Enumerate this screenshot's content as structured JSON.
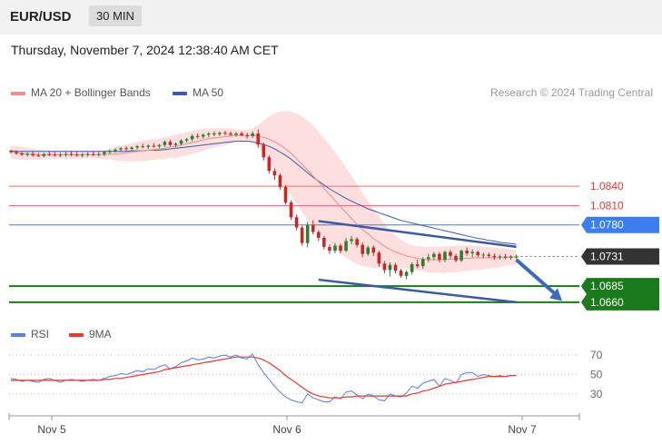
{
  "header": {
    "symbol": "EUR/USD",
    "timeframe": "30 MIN"
  },
  "datetime": "Thursday, November 7, 2024 12:38:40 AM CET",
  "legend": {
    "ma20_label": "MA 20 + Bollinger Bands",
    "ma50_label": "MA 50",
    "credit": "Research © 2024 Trading Central"
  },
  "colors": {
    "ma20": "#f28b8b",
    "ma50": "#3b5ba8",
    "band": "#fdd9d9",
    "up": "#2e7d32",
    "down": "#c62828",
    "rsi": "#5b7fdb",
    "rsi_ma": "#e53935",
    "support": "#1b7a1b",
    "resistance": "#e57373",
    "pivot": "#3c7df0",
    "last": "#333333"
  },
  "chart_data": [
    {
      "type": "candlestick",
      "title": "",
      "x_ticks": [
        "Nov 5",
        "Nov 6",
        "Nov 7"
      ],
      "ylim": [
        1.065,
        1.096
      ],
      "candles": [
        [
          1.0895,
          1.0897,
          1.0891,
          1.0893
        ],
        [
          1.0893,
          1.0896,
          1.0889,
          1.0891
        ],
        [
          1.0891,
          1.0894,
          1.0887,
          1.0889
        ],
        [
          1.0889,
          1.0893,
          1.0886,
          1.089
        ],
        [
          1.089,
          1.0894,
          1.0886,
          1.0888
        ],
        [
          1.0888,
          1.0892,
          1.0885,
          1.0887
        ],
        [
          1.0887,
          1.0892,
          1.0885,
          1.089
        ],
        [
          1.089,
          1.0894,
          1.0887,
          1.0889
        ],
        [
          1.0889,
          1.0893,
          1.0886,
          1.0888
        ],
        [
          1.0888,
          1.0892,
          1.0885,
          1.0889
        ],
        [
          1.0889,
          1.0893,
          1.0886,
          1.089
        ],
        [
          1.089,
          1.0894,
          1.0887,
          1.0889
        ],
        [
          1.0889,
          1.0893,
          1.0886,
          1.0888
        ],
        [
          1.0888,
          1.0892,
          1.0885,
          1.0889
        ],
        [
          1.0889,
          1.0893,
          1.0886,
          1.089
        ],
        [
          1.089,
          1.0894,
          1.0887,
          1.0889
        ],
        [
          1.0889,
          1.0893,
          1.0886,
          1.089
        ],
        [
          1.089,
          1.0895,
          1.0887,
          1.0893
        ],
        [
          1.0893,
          1.0897,
          1.089,
          1.0895
        ],
        [
          1.0895,
          1.0899,
          1.0892,
          1.0897
        ],
        [
          1.0897,
          1.0901,
          1.0894,
          1.0899
        ],
        [
          1.0899,
          1.0902,
          1.0895,
          1.0898
        ],
        [
          1.0898,
          1.0902,
          1.0895,
          1.09
        ],
        [
          1.09,
          1.0904,
          1.0897,
          1.0902
        ],
        [
          1.0902,
          1.0906,
          1.0899,
          1.0901
        ],
        [
          1.0901,
          1.0905,
          1.0898,
          1.0903
        ],
        [
          1.0903,
          1.0907,
          1.09,
          1.0902
        ],
        [
          1.0902,
          1.0906,
          1.0899,
          1.0904
        ],
        [
          1.0904,
          1.0911,
          1.0901,
          1.0909
        ],
        [
          1.0909,
          1.0912,
          1.0902,
          1.0904
        ],
        [
          1.0904,
          1.0908,
          1.0901,
          1.0906
        ],
        [
          1.0906,
          1.0913,
          1.0903,
          1.0911
        ],
        [
          1.0911,
          1.0915,
          1.0908,
          1.0913
        ],
        [
          1.0913,
          1.0921,
          1.091,
          1.0918
        ],
        [
          1.0918,
          1.0922,
          1.0914,
          1.0917
        ],
        [
          1.0917,
          1.0922,
          1.0914,
          1.092
        ],
        [
          1.092,
          1.0924,
          1.0916,
          1.0922
        ],
        [
          1.0922,
          1.0925,
          1.0918,
          1.0921
        ],
        [
          1.0921,
          1.0925,
          1.0918,
          1.0923
        ],
        [
          1.0923,
          1.0926,
          1.0919,
          1.0922
        ],
        [
          1.0922,
          1.0925,
          1.0918,
          1.092
        ],
        [
          1.092,
          1.0924,
          1.0917,
          1.0922
        ],
        [
          1.0922,
          1.0925,
          1.0918,
          1.0919
        ],
        [
          1.0919,
          1.0923,
          1.0914,
          1.0918
        ],
        [
          1.0918,
          1.0925,
          1.0915,
          1.0922
        ],
        [
          1.0922,
          1.0928,
          1.09,
          1.0905
        ],
        [
          1.0905,
          1.0908,
          1.088,
          1.0885
        ],
        [
          1.0885,
          1.0888,
          1.086,
          1.0864
        ],
        [
          1.0864,
          1.0868,
          1.085,
          1.0857
        ],
        [
          1.0857,
          1.086,
          1.0835,
          1.0839
        ],
        [
          1.0839,
          1.0842,
          1.0812,
          1.0815
        ],
        [
          1.0815,
          1.0818,
          1.0788,
          1.0792
        ],
        [
          1.0792,
          1.0796,
          1.0772,
          1.0776
        ],
        [
          1.0776,
          1.0779,
          1.0748,
          1.0752
        ],
        [
          1.0752,
          1.0785,
          1.0745,
          1.078
        ],
        [
          1.078,
          1.0787,
          1.0765,
          1.0769
        ],
        [
          1.0769,
          1.0772,
          1.0755,
          1.076
        ],
        [
          1.076,
          1.0763,
          1.0742,
          1.0746
        ],
        [
          1.0746,
          1.075,
          1.0735,
          1.074
        ],
        [
          1.074,
          1.0752,
          1.0736,
          1.0748
        ],
        [
          1.0748,
          1.0751,
          1.0736,
          1.074
        ],
        [
          1.074,
          1.076,
          1.0738,
          1.0755
        ],
        [
          1.0755,
          1.0763,
          1.075,
          1.0758
        ],
        [
          1.0758,
          1.0761,
          1.0745,
          1.0749
        ],
        [
          1.0749,
          1.0753,
          1.073,
          1.0735
        ],
        [
          1.0735,
          1.0748,
          1.0732,
          1.0745
        ],
        [
          1.0745,
          1.0748,
          1.0732,
          1.0737
        ],
        [
          1.0737,
          1.074,
          1.0715,
          1.072
        ],
        [
          1.072,
          1.0724,
          1.0705,
          1.071
        ],
        [
          1.071,
          1.0722,
          1.07,
          1.0718
        ],
        [
          1.0718,
          1.0721,
          1.0705,
          1.0709
        ],
        [
          1.0709,
          1.0712,
          1.0698,
          1.0701
        ],
        [
          1.0701,
          1.071,
          1.0696,
          1.0707
        ],
        [
          1.0707,
          1.0722,
          1.0703,
          1.0719
        ],
        [
          1.0719,
          1.0726,
          1.0713,
          1.0716
        ],
        [
          1.0716,
          1.073,
          1.0712,
          1.0727
        ],
        [
          1.0727,
          1.0735,
          1.0722,
          1.073
        ],
        [
          1.073,
          1.0738,
          1.0726,
          1.0735
        ],
        [
          1.0735,
          1.0738,
          1.0722,
          1.0726
        ],
        [
          1.0726,
          1.074,
          1.0722,
          1.0738
        ],
        [
          1.0738,
          1.0741,
          1.0728,
          1.0732
        ],
        [
          1.0732,
          1.0735,
          1.0722,
          1.0725
        ],
        [
          1.0725,
          1.0742,
          1.0722,
          1.074
        ],
        [
          1.074,
          1.0745,
          1.0732,
          1.0736
        ],
        [
          1.0736,
          1.0742,
          1.073,
          1.0738
        ],
        [
          1.0738,
          1.074,
          1.073,
          1.0733
        ],
        [
          1.0733,
          1.0737,
          1.0728,
          1.0734
        ],
        [
          1.0734,
          1.0737,
          1.0729,
          1.0732
        ],
        [
          1.0732,
          1.0736,
          1.0726,
          1.073
        ],
        [
          1.073,
          1.0734,
          1.0726,
          1.0731
        ],
        [
          1.0731,
          1.0735,
          1.0727,
          1.0729
        ],
        [
          1.0729,
          1.0733,
          1.0726,
          1.0731
        ],
        [
          1.0731,
          1.0734,
          1.0727,
          1.0731
        ]
      ],
      "ma20": [
        1.0893,
        1.0892,
        1.0891,
        1.089,
        1.089,
        1.0889,
        1.0889,
        1.0889,
        1.0889,
        1.0889,
        1.0889,
        1.0889,
        1.0889,
        1.0889,
        1.0889,
        1.0889,
        1.0889,
        1.0889,
        1.089,
        1.089,
        1.0891,
        1.0892,
        1.0893,
        1.0894,
        1.0895,
        1.0896,
        1.0897,
        1.0898,
        1.0899,
        1.0901,
        1.0902,
        1.0904,
        1.0906,
        1.0908,
        1.091,
        1.0912,
        1.0914,
        1.0915,
        1.0916,
        1.0917,
        1.0918,
        1.0919,
        1.0919,
        1.0919,
        1.0919,
        1.0918,
        1.0916,
        1.0913,
        1.0909,
        1.0904,
        1.0898,
        1.0891,
        1.0883,
        1.0874,
        1.0865,
        1.0856,
        1.0847,
        1.0837,
        1.0827,
        1.0818,
        1.0808,
        1.0799,
        1.079,
        1.0781,
        1.0773,
        1.0766,
        1.0759,
        1.0753,
        1.0747,
        1.0742,
        1.0738,
        1.0735,
        1.0732,
        1.073,
        1.0728,
        1.0727,
        1.0726,
        1.0726,
        1.0726,
        1.0726,
        1.0727,
        1.0727,
        1.0728,
        1.0728,
        1.0729,
        1.0729,
        1.0729,
        1.0729,
        1.0729,
        1.0729,
        1.073,
        1.073,
        1.073
      ],
      "bb_upper": [
        1.0903,
        1.0902,
        1.0901,
        1.0899,
        1.0898,
        1.0897,
        1.0896,
        1.0895,
        1.0895,
        1.0895,
        1.0895,
        1.0895,
        1.0895,
        1.0895,
        1.0895,
        1.0895,
        1.0895,
        1.0896,
        1.0898,
        1.09,
        1.0903,
        1.0905,
        1.0907,
        1.0909,
        1.0911,
        1.0912,
        1.0913,
        1.0914,
        1.0916,
        1.0918,
        1.092,
        1.0922,
        1.0924,
        1.0926,
        1.0928,
        1.0929,
        1.093,
        1.093,
        1.093,
        1.093,
        1.093,
        1.0929,
        1.0928,
        1.0928,
        1.093,
        1.0935,
        1.0942,
        1.0948,
        1.0953,
        1.0956,
        1.0957,
        1.0956,
        1.0953,
        1.0948,
        1.0942,
        1.0934,
        1.0925,
        1.0915,
        1.0904,
        1.0893,
        1.0881,
        1.0869,
        1.0856,
        1.0843,
        1.083,
        1.0817,
        1.0805,
        1.0793,
        1.0782,
        1.0772,
        1.0764,
        1.0757,
        1.0752,
        1.0749,
        1.0747,
        1.0746,
        1.0746,
        1.0746,
        1.0746,
        1.0747,
        1.0747,
        1.0748,
        1.0748,
        1.0748,
        1.0748,
        1.0748,
        1.0747,
        1.0746,
        1.0745,
        1.0744,
        1.0743,
        1.0742,
        1.0741
      ],
      "bb_lower": [
        1.0883,
        1.0882,
        1.0881,
        1.0881,
        1.0882,
        1.0881,
        1.0882,
        1.0883,
        1.0883,
        1.0883,
        1.0883,
        1.0883,
        1.0883,
        1.0883,
        1.0883,
        1.0883,
        1.0883,
        1.0882,
        1.0882,
        1.088,
        1.0879,
        1.0879,
        1.0879,
        1.0879,
        1.0879,
        1.088,
        1.0881,
        1.0882,
        1.0882,
        1.0884,
        1.0884,
        1.0886,
        1.0888,
        1.089,
        1.0892,
        1.0895,
        1.0898,
        1.09,
        1.0902,
        1.0904,
        1.0906,
        1.0909,
        1.091,
        1.091,
        1.0908,
        1.0901,
        1.089,
        1.0878,
        1.0865,
        1.0852,
        1.0839,
        1.0826,
        1.0813,
        1.08,
        1.0788,
        1.0778,
        1.0769,
        1.0759,
        1.075,
        1.0743,
        1.0735,
        1.0729,
        1.0724,
        1.0719,
        1.0716,
        1.0715,
        1.0713,
        1.0713,
        1.0712,
        1.0712,
        1.0712,
        1.0713,
        1.0712,
        1.0711,
        1.0709,
        1.0708,
        1.0706,
        1.0706,
        1.0706,
        1.0705,
        1.0707,
        1.0706,
        1.0708,
        1.0708,
        1.071,
        1.071,
        1.0711,
        1.0712,
        1.0713,
        1.0714,
        1.0717,
        1.0718,
        1.0719
      ],
      "ma50": [
        1.0895,
        1.0894,
        1.0894,
        1.0894,
        1.0894,
        1.0894,
        1.0894,
        1.0894,
        1.0894,
        1.0894,
        1.0894,
        1.0894,
        1.0894,
        1.0894,
        1.0894,
        1.0894,
        1.0894,
        1.0894,
        1.0894,
        1.0894,
        1.0894,
        1.0894,
        1.0895,
        1.0895,
        1.0895,
        1.0896,
        1.0896,
        1.0896,
        1.0897,
        1.0898,
        1.0899,
        1.09,
        1.0901,
        1.0902,
        1.0903,
        1.0904,
        1.0905,
        1.0906,
        1.0907,
        1.0908,
        1.0909,
        1.091,
        1.091,
        1.091,
        1.0909,
        1.0907,
        1.0905,
        1.0902,
        1.0898,
        1.0893,
        1.0888,
        1.0882,
        1.0875,
        1.0868,
        1.0861,
        1.0854,
        1.0848,
        1.0842,
        1.0836,
        1.0831,
        1.0826,
        1.0821,
        1.0817,
        1.0813,
        1.0809,
        1.0805,
        1.0802,
        1.0799,
        1.0796,
        1.0793,
        1.079,
        1.0787,
        1.0785,
        1.0783,
        1.0781,
        1.0779,
        1.0777,
        1.0775,
        1.0773,
        1.0771,
        1.0769,
        1.0767,
        1.0765,
        1.0763,
        1.0761,
        1.0759,
        1.0758,
        1.0756,
        1.0755,
        1.0753,
        1.0752,
        1.0751,
        1.075
      ],
      "levels": [
        {
          "value": 1.084,
          "label": "1.0840",
          "kind": "resistance"
        },
        {
          "value": 1.081,
          "label": "1.0810",
          "kind": "resistance"
        },
        {
          "value": 1.078,
          "label": "1.0780",
          "kind": "pivot"
        },
        {
          "value": 1.0731,
          "label": "1.0731",
          "kind": "last"
        },
        {
          "value": 1.0685,
          "label": "1.0685",
          "kind": "support"
        },
        {
          "value": 1.066,
          "label": "1.0660",
          "kind": "support"
        }
      ],
      "channel": {
        "upper": [
          [
            56,
            1.0786
          ],
          [
            92,
            1.0746
          ]
        ],
        "lower": [
          [
            56,
            1.0695
          ],
          [
            92,
            1.066
          ]
        ]
      },
      "forecast_arrow": [
        [
          92,
          1.0726
        ],
        [
          100,
          1.0665
        ]
      ]
    },
    {
      "type": "line",
      "title": "",
      "legend": [
        "RSI",
        "9MA"
      ],
      "y_ticks": [
        70,
        50,
        30
      ],
      "ylim": [
        15,
        85
      ],
      "series": [
        {
          "name": "RSI",
          "values": [
            46,
            45,
            43,
            44,
            43,
            42,
            45,
            46,
            44,
            42,
            44,
            45,
            44,
            43,
            44,
            45,
            44,
            46,
            48,
            49,
            51,
            50,
            52,
            54,
            53,
            56,
            55,
            58,
            60,
            56,
            58,
            62,
            64,
            67,
            65,
            66,
            68,
            67,
            69,
            70,
            68,
            70,
            67,
            66,
            71,
            60,
            52,
            45,
            38,
            32,
            27,
            24,
            22,
            21,
            30,
            26,
            24,
            22,
            22,
            27,
            25,
            32,
            33,
            29,
            25,
            30,
            28,
            24,
            23,
            30,
            28,
            27,
            31,
            38,
            36,
            41,
            43,
            45,
            38,
            46,
            44,
            41,
            50,
            52,
            52,
            48,
            50,
            49,
            48,
            49,
            48,
            49,
            49
          ]
        },
        {
          "name": "9MA",
          "values": [
            44,
            44,
            44,
            44,
            44,
            44,
            44,
            44,
            44,
            44,
            44,
            44,
            44,
            44,
            44,
            44,
            44,
            45,
            45,
            46,
            46,
            47,
            48,
            49,
            50,
            51,
            52,
            53,
            55,
            56,
            57,
            58,
            59,
            60,
            61,
            62,
            63,
            64,
            65,
            66,
            67,
            68,
            68,
            68,
            68,
            67,
            65,
            62,
            58,
            54,
            49,
            45,
            41,
            37,
            33,
            30,
            28,
            27,
            26,
            26,
            26,
            27,
            27,
            28,
            28,
            28,
            28,
            28,
            28,
            28,
            28,
            28,
            28,
            30,
            31,
            33,
            34,
            36,
            38,
            40,
            41,
            42,
            43,
            44,
            45,
            46,
            47,
            48,
            48,
            48,
            48,
            49,
            49
          ]
        }
      ]
    }
  ]
}
